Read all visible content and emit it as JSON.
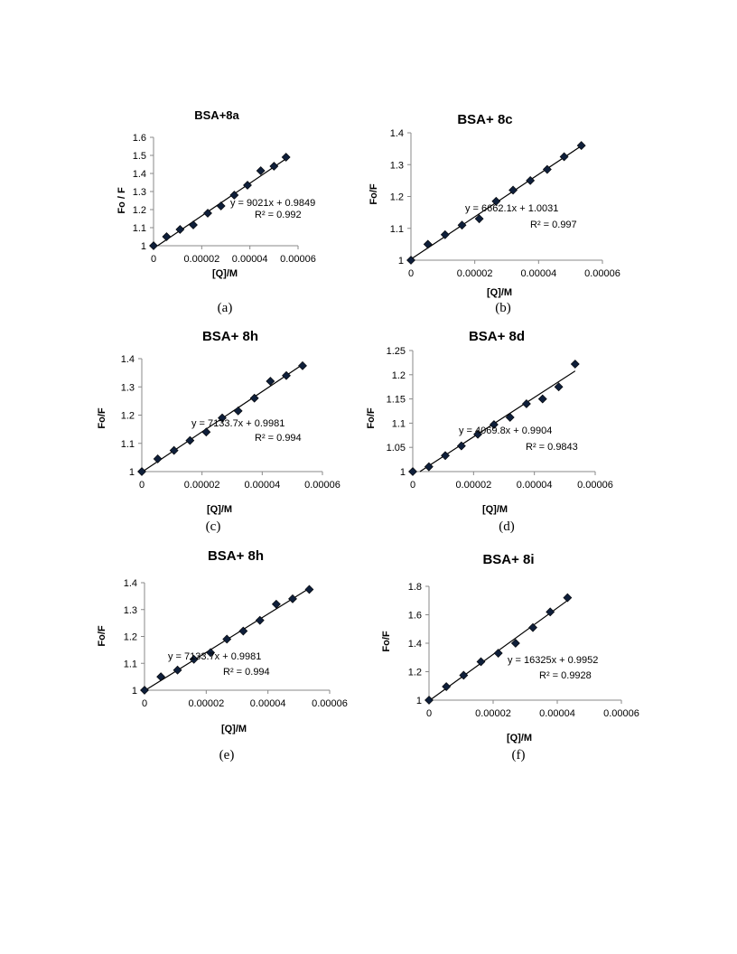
{
  "chart_data": [
    {
      "type": "scatter",
      "title": "BSA+8a",
      "xlabel": "[Q]/M",
      "ylabel": "Fo / F",
      "xlim": [
        0,
        6e-05
      ],
      "ylim": [
        1,
        1.6
      ],
      "xticks": [
        "0",
        "0.00002",
        "0.00004",
        "0.00006"
      ],
      "yticks": [
        "1",
        "1.1",
        "1.2",
        "1.3",
        "1.4",
        "1.5",
        "1.6"
      ],
      "x": [
        0,
        5.4e-06,
        1.1e-05,
        1.65e-05,
        2.25e-05,
        2.8e-05,
        3.35e-05,
        3.9e-05,
        4.45e-05,
        5e-05,
        5.5e-05
      ],
      "y": [
        1.0,
        1.05,
        1.09,
        1.115,
        1.18,
        1.22,
        1.28,
        1.335,
        1.415,
        1.44,
        1.49
      ],
      "trendline": {
        "slope": 9021,
        "intercept": 0.9849
      },
      "equation": "y = 9021x + 0.9849",
      "r2": "R² = 0.992",
      "caption": "(a)"
    },
    {
      "type": "scatter",
      "title": "BSA+ 8c",
      "xlabel": "[Q]/M",
      "ylabel": "Fo/F",
      "xlim": [
        0,
        6e-05
      ],
      "ylim": [
        1,
        1.4
      ],
      "xticks": [
        "0",
        "0.00002",
        "0.00004",
        "0.00006"
      ],
      "yticks": [
        "1",
        "1.1",
        "1.2",
        "1.3",
        "1.4"
      ],
      "x": [
        0,
        5.3e-06,
        1.07e-05,
        1.6e-05,
        2.14e-05,
        2.67e-05,
        3.2e-05,
        3.74e-05,
        4.27e-05,
        4.8e-05,
        5.34e-05
      ],
      "y": [
        1.0,
        1.05,
        1.08,
        1.11,
        1.13,
        1.185,
        1.22,
        1.25,
        1.285,
        1.325,
        1.36
      ],
      "trendline": {
        "slope": 6662.1,
        "intercept": 1.0031
      },
      "equation": "y = 6662.1x + 1.0031",
      "r2": "R² = 0.997",
      "caption": "(b)"
    },
    {
      "type": "scatter",
      "title": "BSA+ 8h",
      "xlabel": "[Q]/M",
      "ylabel": "Fo/F",
      "xlim": [
        0,
        6e-05
      ],
      "ylim": [
        1,
        1.4
      ],
      "xticks": [
        "0",
        "0.00002",
        "0.00004",
        "0.00006"
      ],
      "yticks": [
        "1",
        "1.1",
        "1.2",
        "1.3",
        "1.4"
      ],
      "x": [
        0,
        5.3e-06,
        1.07e-05,
        1.6e-05,
        2.14e-05,
        2.67e-05,
        3.2e-05,
        3.74e-05,
        4.27e-05,
        4.8e-05,
        5.34e-05
      ],
      "y": [
        1.0,
        1.045,
        1.075,
        1.11,
        1.14,
        1.19,
        1.215,
        1.26,
        1.32,
        1.34,
        1.375
      ],
      "trendline": {
        "slope": 7133.7,
        "intercept": 0.9981
      },
      "equation": "y = 7133.7x + 0.9981",
      "r2": "R² = 0.994",
      "caption": "(c)"
    },
    {
      "type": "scatter",
      "title": "BSA+ 8d",
      "xlabel": "[Q]/M",
      "ylabel": "Fo/F",
      "xlim": [
        0,
        6e-05
      ],
      "ylim": [
        1,
        1.25
      ],
      "xticks": [
        "0",
        "0.00002",
        "0.00004",
        "0.00006"
      ],
      "yticks": [
        "1",
        "1.05",
        "1.1",
        "1.15",
        "1.2",
        "1.25"
      ],
      "x": [
        0,
        5.3e-06,
        1.07e-05,
        1.6e-05,
        2.14e-05,
        2.67e-05,
        3.2e-05,
        3.74e-05,
        4.27e-05,
        4.8e-05,
        5.34e-05
      ],
      "y": [
        1.0,
        1.01,
        1.033,
        1.053,
        1.077,
        1.097,
        1.112,
        1.14,
        1.15,
        1.175,
        1.222
      ],
      "trendline": {
        "slope": 4069.8,
        "intercept": 0.9904
      },
      "equation": "y = 4069.8x + 0.9904",
      "r2": "R² = 0.9843",
      "caption": "(d)"
    },
    {
      "type": "scatter",
      "title": "BSA+ 8h",
      "xlabel": "[Q]/M",
      "ylabel": "Fo/F",
      "xlim": [
        0,
        6e-05
      ],
      "ylim": [
        1,
        1.4
      ],
      "xticks": [
        "0",
        "0.00002",
        "0.00004",
        "0.00006"
      ],
      "yticks": [
        "1",
        "1.1",
        "1.2",
        "1.3",
        "1.4"
      ],
      "x": [
        0,
        5.3e-06,
        1.07e-05,
        1.6e-05,
        2.14e-05,
        2.67e-05,
        3.2e-05,
        3.74e-05,
        4.27e-05,
        4.8e-05,
        5.34e-05
      ],
      "y": [
        1.0,
        1.05,
        1.075,
        1.115,
        1.14,
        1.19,
        1.22,
        1.26,
        1.32,
        1.34,
        1.375
      ],
      "trendline": {
        "slope": 7133.7,
        "intercept": 0.9981
      },
      "equation": "y = 7133.7x + 0.9981",
      "r2": "R² = 0.994",
      "caption": "(e)"
    },
    {
      "type": "scatter",
      "title": "BSA+ 8i",
      "xlabel": "[Q]/M",
      "ylabel": "Fo/F",
      "xlim": [
        0,
        6e-05
      ],
      "ylim": [
        1,
        1.8
      ],
      "xticks": [
        "0",
        "0.00002",
        "0.00004",
        "0.00006"
      ],
      "yticks": [
        "1",
        "1.2",
        "1.4",
        "1.6",
        "1.8"
      ],
      "x": [
        0,
        5.4e-06,
        1.08e-05,
        1.62e-05,
        2.16e-05,
        2.7e-05,
        3.24e-05,
        3.78e-05,
        4.32e-05
      ],
      "y": [
        1.0,
        1.095,
        1.175,
        1.27,
        1.33,
        1.4,
        1.51,
        1.62,
        1.72
      ],
      "trendline": {
        "slope": 16325,
        "intercept": 0.9952
      },
      "equation": "y = 16325x + 0.9952",
      "r2": "R² = 0.9928",
      "caption": "(f)"
    }
  ]
}
